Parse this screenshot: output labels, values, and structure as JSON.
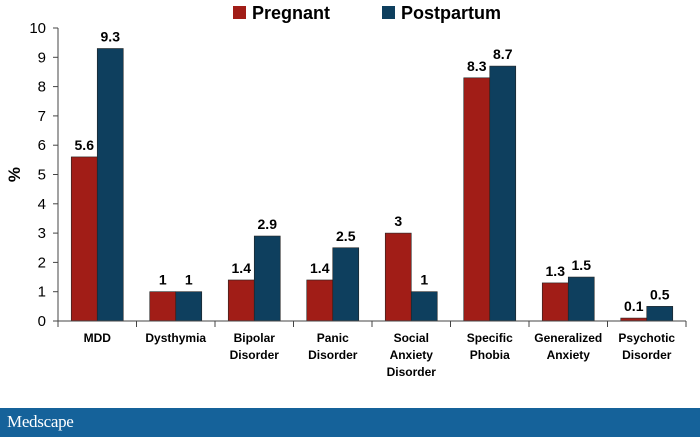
{
  "chart_data": {
    "type": "bar",
    "title": "",
    "xlabel": "",
    "ylabel": "%",
    "ylim": [
      0,
      10
    ],
    "yticks": [
      0,
      1,
      2,
      3,
      4,
      5,
      6,
      7,
      8,
      9,
      10
    ],
    "legend_position": "top-center",
    "grid": false,
    "categories": [
      [
        "MDD"
      ],
      [
        "Dysthymia"
      ],
      [
        "Bipolar",
        "Disorder"
      ],
      [
        "Panic",
        "Disorder"
      ],
      [
        "Social",
        "Anxiety",
        "Disorder"
      ],
      [
        "Specific",
        "Phobia"
      ],
      [
        "Generalized",
        "Anxiety"
      ],
      [
        "Psychotic",
        "Disorder"
      ]
    ],
    "series": [
      {
        "name": "Pregnant",
        "color": "#a11d17",
        "values": [
          5.6,
          1,
          1.4,
          1.4,
          3,
          8.3,
          1.3,
          0.1
        ],
        "labels": [
          "5.6",
          "1",
          "1.4",
          "1.4",
          "3",
          "8.3",
          "1.3",
          "0.1"
        ]
      },
      {
        "name": "Postpartum",
        "color": "#0e3f5e",
        "values": [
          9.3,
          1,
          2.9,
          2.5,
          1,
          8.7,
          1.5,
          0.5
        ],
        "labels": [
          "9.3",
          "1",
          "2.9",
          "2.5",
          "1",
          "8.7",
          "1.5",
          "0.5"
        ]
      }
    ]
  },
  "footer": {
    "brand": "Medscape",
    "color": "#15629a"
  }
}
